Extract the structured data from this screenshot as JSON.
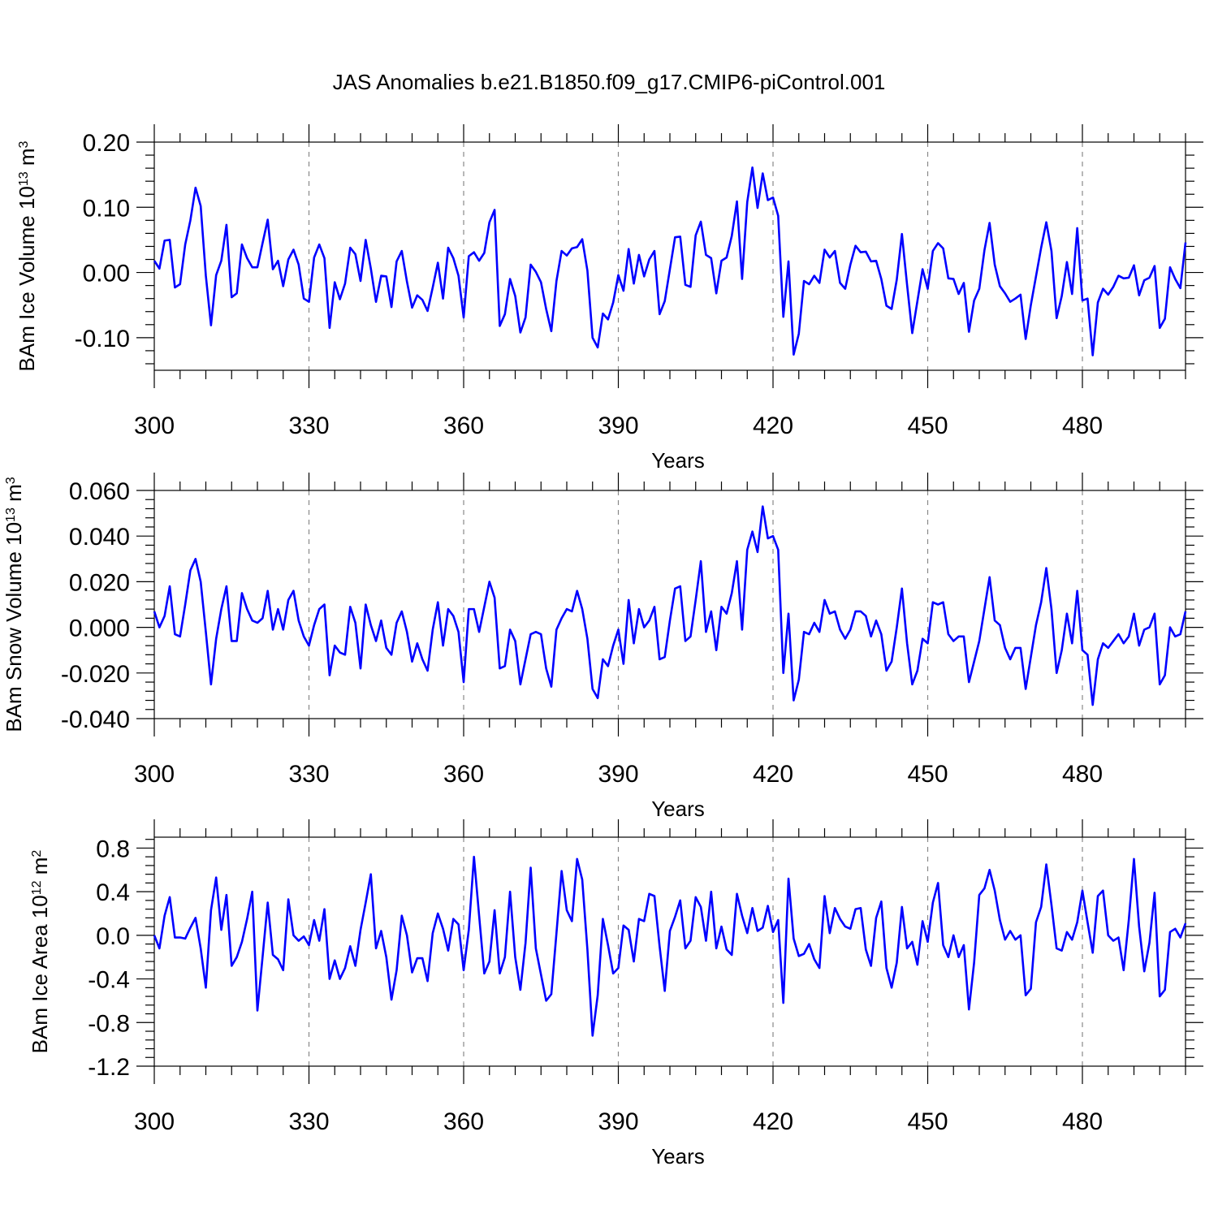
{
  "title": "JAS Anomalies b.e21.B1850.f09_g17.CMIP6-piControl.001",
  "line_color": "#0000ff",
  "chart_data": [
    {
      "type": "line",
      "ylabel": "BAm Ice Volume 10",
      "ylabel_exp": "13",
      "ylabel_unit": " m",
      "ylabel_unit_exp": "3",
      "xlabel": "Years",
      "xlim": [
        300,
        500
      ],
      "ylim": [
        -0.15,
        0.2
      ],
      "yticks": [
        0.2,
        0.1,
        0.0,
        -0.1
      ],
      "ytick_labels": [
        "0.20",
        "0.10",
        "0.00",
        "-0.10"
      ],
      "xticks": [
        300,
        330,
        360,
        390,
        420,
        450,
        480
      ],
      "xtick_labels": [
        "300",
        "330",
        "360",
        "390",
        "420",
        "450",
        "480"
      ],
      "grid_x": [
        330,
        360,
        390,
        420,
        450,
        480
      ],
      "x_start": 300,
      "values": [
        0.018,
        0.006,
        0.049,
        0.05,
        -0.023,
        -0.018,
        0.043,
        0.08,
        0.13,
        0.102,
        -0.005,
        -0.081,
        -0.004,
        0.018,
        0.073,
        -0.038,
        -0.032,
        0.043,
        0.022,
        0.008,
        0.008,
        0.045,
        0.081,
        0.005,
        0.018,
        -0.021,
        0.02,
        0.035,
        0.012,
        -0.04,
        -0.045,
        0.023,
        0.043,
        0.022,
        -0.085,
        -0.015,
        -0.041,
        -0.017,
        0.038,
        0.028,
        -0.013,
        0.05,
        0.006,
        -0.045,
        -0.005,
        -0.006,
        -0.053,
        0.017,
        0.033,
        -0.014,
        -0.054,
        -0.035,
        -0.042,
        -0.059,
        -0.023,
        0.015,
        -0.04,
        0.038,
        0.022,
        -0.005,
        -0.069,
        0.025,
        0.031,
        0.018,
        0.03,
        0.077,
        0.096,
        -0.082,
        -0.064,
        -0.01,
        -0.036,
        -0.092,
        -0.069,
        0.012,
        0.001,
        -0.015,
        -0.056,
        -0.09,
        -0.013,
        0.033,
        0.026,
        0.037,
        0.039,
        0.051,
        0.003,
        -0.1,
        -0.115,
        -0.063,
        -0.072,
        -0.046,
        -0.004,
        -0.028,
        0.036,
        -0.017,
        0.027,
        -0.006,
        0.02,
        0.033,
        -0.064,
        -0.044,
        0.005,
        0.054,
        0.055,
        -0.019,
        -0.022,
        0.057,
        0.078,
        0.027,
        0.022,
        -0.032,
        0.018,
        0.023,
        0.056,
        0.109,
        -0.01,
        0.108,
        0.161,
        0.099,
        0.152,
        0.111,
        0.115,
        0.087,
        -0.068,
        0.017,
        -0.126,
        -0.094,
        -0.013,
        -0.018,
        -0.005,
        -0.016,
        0.035,
        0.023,
        0.033,
        -0.016,
        -0.025,
        0.012,
        0.041,
        0.031,
        0.032,
        0.017,
        0.018,
        -0.01,
        -0.051,
        -0.056,
        -0.011,
        0.059,
        -0.019,
        -0.093,
        -0.044,
        0.005,
        -0.025,
        0.033,
        0.045,
        0.037,
        -0.009,
        -0.01,
        -0.033,
        -0.016,
        -0.091,
        -0.043,
        -0.025,
        0.034,
        0.076,
        0.012,
        -0.021,
        -0.032,
        -0.045,
        -0.04,
        -0.034,
        -0.102,
        -0.05,
        -0.006,
        0.038,
        0.077,
        0.033,
        -0.07,
        -0.036,
        0.016,
        -0.033,
        0.068,
        -0.043,
        -0.04,
        -0.127,
        -0.046,
        -0.025,
        -0.034,
        -0.022,
        -0.005,
        -0.009,
        -0.008,
        0.011,
        -0.035,
        -0.012,
        -0.008,
        0.01,
        -0.085,
        -0.071,
        0.008,
        -0.01,
        -0.024,
        0.046
      ]
    },
    {
      "type": "line",
      "ylabel": "BAm Snow Volume 10",
      "ylabel_exp": "13",
      "ylabel_unit": " m",
      "ylabel_unit_exp": "3",
      "xlabel": "Years",
      "xlim": [
        300,
        500
      ],
      "ylim": [
        -0.04,
        0.06
      ],
      "yticks": [
        0.06,
        0.04,
        0.02,
        0.0,
        -0.02,
        -0.04
      ],
      "ytick_labels": [
        "0.060",
        "0.040",
        "0.020",
        "0.000",
        "-0.020",
        "-0.040"
      ],
      "xticks": [
        300,
        330,
        360,
        390,
        420,
        450,
        480
      ],
      "xtick_labels": [
        "300",
        "330",
        "360",
        "390",
        "420",
        "450",
        "480"
      ],
      "grid_x": [
        330,
        360,
        390,
        420,
        450,
        480
      ],
      "x_start": 300,
      "values": [
        0.007,
        0.0,
        0.005,
        0.018,
        -0.003,
        -0.004,
        0.01,
        0.025,
        0.03,
        0.02,
        -0.002,
        -0.025,
        -0.005,
        0.008,
        0.018,
        -0.006,
        -0.006,
        0.015,
        0.008,
        0.003,
        0.002,
        0.004,
        0.016,
        -0.001,
        0.008,
        -0.001,
        0.012,
        0.016,
        0.003,
        -0.004,
        -0.008,
        0.001,
        0.008,
        0.01,
        -0.021,
        -0.008,
        -0.011,
        -0.012,
        0.009,
        0.002,
        -0.018,
        0.01,
        0.001,
        -0.006,
        0.003,
        -0.009,
        -0.012,
        0.002,
        0.007,
        -0.002,
        -0.015,
        -0.007,
        -0.014,
        -0.019,
        -0.001,
        0.011,
        -0.008,
        0.008,
        0.005,
        -0.002,
        -0.024,
        0.008,
        0.008,
        -0.002,
        0.009,
        0.02,
        0.013,
        -0.018,
        -0.017,
        -0.001,
        -0.006,
        -0.025,
        -0.014,
        -0.003,
        -0.002,
        -0.003,
        -0.018,
        -0.026,
        -0.001,
        0.004,
        0.008,
        0.007,
        0.016,
        0.008,
        -0.005,
        -0.027,
        -0.031,
        -0.014,
        -0.017,
        -0.008,
        -0.001,
        -0.016,
        0.012,
        -0.007,
        0.008,
        0.0,
        0.003,
        0.009,
        -0.014,
        -0.013,
        0.003,
        0.017,
        0.018,
        -0.006,
        -0.004,
        0.012,
        0.029,
        -0.002,
        0.007,
        -0.01,
        0.009,
        0.006,
        0.015,
        0.029,
        -0.001,
        0.034,
        0.042,
        0.033,
        0.053,
        0.039,
        0.04,
        0.034,
        -0.02,
        0.006,
        -0.032,
        -0.023,
        -0.002,
        -0.003,
        0.002,
        -0.002,
        0.012,
        0.006,
        0.007,
        -0.001,
        -0.005,
        -0.001,
        0.007,
        0.007,
        0.005,
        -0.004,
        0.003,
        -0.003,
        -0.019,
        -0.015,
        0.0,
        0.017,
        -0.007,
        -0.025,
        -0.019,
        -0.005,
        -0.007,
        0.011,
        0.01,
        0.011,
        -0.003,
        -0.006,
        -0.004,
        -0.004,
        -0.024,
        -0.015,
        -0.006,
        0.008,
        0.022,
        0.003,
        0.001,
        -0.009,
        -0.014,
        -0.009,
        -0.009,
        -0.027,
        -0.013,
        0.001,
        0.011,
        0.026,
        0.008,
        -0.02,
        -0.01,
        0.006,
        -0.007,
        0.016,
        -0.01,
        -0.012,
        -0.034,
        -0.014,
        -0.007,
        -0.009,
        -0.006,
        -0.003,
        -0.007,
        -0.004,
        0.006,
        -0.008,
        -0.001,
        0.0,
        0.006,
        -0.025,
        -0.021,
        0.0,
        -0.004,
        -0.003,
        0.007
      ]
    },
    {
      "type": "line",
      "ylabel": "BAm Ice Area 10",
      "ylabel_exp": "12",
      "ylabel_unit": " m",
      "ylabel_unit_exp": "2",
      "xlabel": "Years",
      "xlim": [
        300,
        500
      ],
      "ylim": [
        -1.2,
        0.9
      ],
      "yticks": [
        0.8,
        0.4,
        0.0,
        -0.4,
        -0.8,
        -1.2
      ],
      "ytick_labels": [
        "0.8",
        "0.4",
        "0.0",
        "-0.4",
        "-0.8",
        "-1.2"
      ],
      "xticks": [
        300,
        330,
        360,
        390,
        420,
        450,
        480
      ],
      "xtick_labels": [
        "300",
        "330",
        "360",
        "390",
        "420",
        "450",
        "480"
      ],
      "grid_x": [
        330,
        360,
        390,
        420,
        450,
        480
      ],
      "x_start": 300,
      "values": [
        0.0,
        -0.12,
        0.18,
        0.35,
        -0.02,
        -0.02,
        -0.03,
        0.07,
        0.16,
        -0.12,
        -0.48,
        0.23,
        0.53,
        0.05,
        0.37,
        -0.28,
        -0.2,
        -0.06,
        0.15,
        0.4,
        -0.69,
        -0.2,
        0.3,
        -0.18,
        -0.22,
        -0.32,
        0.33,
        0.0,
        -0.05,
        -0.01,
        -0.09,
        0.14,
        -0.05,
        0.24,
        -0.4,
        -0.23,
        -0.4,
        -0.3,
        -0.1,
        -0.28,
        0.05,
        0.3,
        0.56,
        -0.12,
        0.04,
        -0.2,
        -0.59,
        -0.32,
        0.18,
        0.0,
        -0.34,
        -0.21,
        -0.21,
        -0.42,
        0.02,
        0.2,
        0.06,
        -0.14,
        0.15,
        0.1,
        -0.32,
        0.05,
        0.72,
        0.18,
        -0.35,
        -0.24,
        0.23,
        -0.35,
        -0.2,
        0.4,
        -0.2,
        -0.5,
        -0.07,
        0.62,
        -0.12,
        -0.36,
        -0.6,
        -0.54,
        0.02,
        0.59,
        0.23,
        0.13,
        0.7,
        0.51,
        -0.13,
        -0.92,
        -0.55,
        0.15,
        -0.09,
        -0.35,
        -0.3,
        0.09,
        0.05,
        -0.24,
        0.15,
        0.13,
        0.38,
        0.36,
        -0.1,
        -0.51,
        0.04,
        0.17,
        0.32,
        -0.12,
        -0.05,
        0.35,
        0.26,
        -0.05,
        0.4,
        -0.12,
        0.08,
        -0.13,
        -0.18,
        0.38,
        0.18,
        0.02,
        0.25,
        0.04,
        0.07,
        0.27,
        0.03,
        0.14,
        -0.62,
        0.52,
        -0.03,
        -0.19,
        -0.17,
        -0.08,
        -0.22,
        -0.3,
        0.36,
        0.02,
        0.25,
        0.15,
        0.08,
        0.06,
        0.24,
        0.25,
        -0.13,
        -0.28,
        0.16,
        0.31,
        -0.3,
        -0.48,
        -0.25,
        0.26,
        -0.12,
        -0.06,
        -0.27,
        0.13,
        -0.06,
        0.3,
        0.48,
        -0.09,
        -0.2,
        0.0,
        -0.2,
        -0.09,
        -0.68,
        -0.25,
        0.37,
        0.43,
        0.6,
        0.41,
        0.14,
        -0.04,
        0.04,
        -0.04,
        0.0,
        -0.55,
        -0.49,
        0.12,
        0.26,
        0.65,
        0.28,
        -0.12,
        -0.14,
        0.03,
        -0.04,
        0.12,
        0.41,
        0.12,
        -0.16,
        0.36,
        0.41,
        0.0,
        -0.05,
        -0.02,
        -0.32,
        0.14,
        0.7,
        0.08,
        -0.33,
        -0.07,
        0.39,
        -0.56,
        -0.5,
        0.03,
        0.06,
        -0.02,
        0.11
      ]
    }
  ]
}
